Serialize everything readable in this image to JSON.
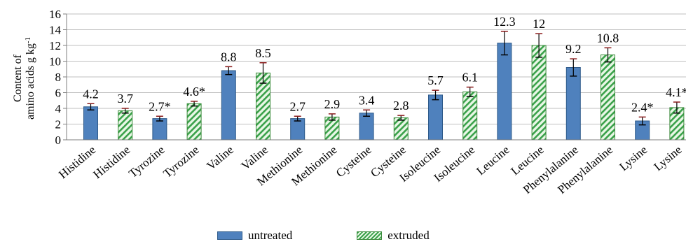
{
  "chart_data": {
    "type": "bar",
    "ylabel_line1": "Content of",
    "ylabel_line2": "amino acids g kg",
    "ylabel_sup": "-1",
    "ylim": [
      0,
      16
    ],
    "yticks": [
      0,
      2,
      4,
      6,
      8,
      10,
      12,
      14,
      16
    ],
    "categories": [
      "Histidine",
      "Histidine",
      "Tyrozine",
      "Tyrozine",
      "Valine",
      "Valine",
      "Methionine",
      "Methionine",
      "Cysteine",
      "Cysteine",
      "Isoleucine",
      "Isoleucine",
      "Leucine",
      "Leucine",
      "Phenylalanine",
      "Phenylalanine",
      "Lysine",
      "Lysine"
    ],
    "series_per_bar": [
      "untreated",
      "extruded",
      "untreated",
      "extruded",
      "untreated",
      "extruded",
      "untreated",
      "extruded",
      "untreated",
      "extruded",
      "untreated",
      "extruded",
      "untreated",
      "extruded",
      "untreated",
      "extruded",
      "untreated",
      "extruded"
    ],
    "values": [
      4.2,
      3.7,
      2.7,
      4.6,
      8.8,
      8.5,
      2.7,
      2.9,
      3.4,
      2.8,
      5.7,
      6.1,
      12.3,
      12.0,
      9.2,
      10.8,
      2.4,
      4.1
    ],
    "error": [
      0.4,
      0.3,
      0.3,
      0.3,
      0.5,
      1.3,
      0.3,
      0.4,
      0.4,
      0.3,
      0.6,
      0.6,
      1.5,
      1.5,
      1.1,
      0.9,
      0.5,
      0.7
    ],
    "data_labels": [
      "4.2",
      "3.7",
      "2.7*",
      "4.6*",
      "8.8",
      "8.5",
      "2.7",
      "2.9",
      "3.4",
      "2.8",
      "5.7",
      "6.1",
      "12.3",
      "12",
      "9.2",
      "10.8",
      "2.4*",
      "4.1*"
    ],
    "legend": [
      {
        "name": "untreated",
        "color": "#4f81bd"
      },
      {
        "name": "extruded",
        "color": "#3aa14a"
      }
    ],
    "colors": {
      "untreated_fill": "#4f81bd",
      "extruded_fill": "#3aa14a",
      "extruded_bg": "#e9f7e6",
      "grid": "#bfbfbf",
      "error_bar": "#8b1a1a"
    },
    "grid": true,
    "legend_position": "bottom"
  }
}
